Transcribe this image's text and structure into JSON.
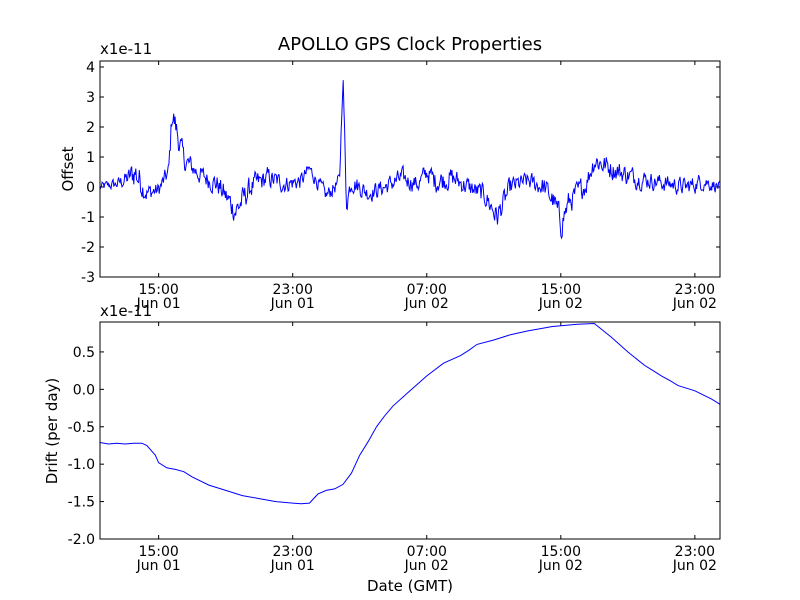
{
  "chart_data": [
    {
      "type": "line",
      "title": "APOLLO GPS Clock Properties",
      "xlabel": "",
      "ylabel": "Offset",
      "scale_label": "x1e-11",
      "xlim": [
        11.5,
        48.5
      ],
      "ylim": [
        -3,
        4.2
      ],
      "yticks": [
        -3,
        -2,
        -1,
        0,
        1,
        2,
        3,
        4
      ],
      "ytick_labels": [
        "-3",
        "-2",
        "-1",
        "0",
        "1",
        "2",
        "3",
        "4"
      ],
      "xticks": [
        15,
        23,
        31,
        39,
        47
      ],
      "xtick_labels": [
        {
          "time": "15:00",
          "date": "Jun 01"
        },
        {
          "time": "23:00",
          "date": "Jun 01"
        },
        {
          "time": "07:00",
          "date": "Jun 02"
        },
        {
          "time": "15:00",
          "date": "Jun 02"
        },
        {
          "time": "23:00",
          "date": "Jun 02"
        }
      ],
      "line_color": "#0000ff",
      "series": [
        {
          "name": "Offset",
          "x": [
            11.5,
            12.5,
            13.2,
            13.6,
            14.3,
            15.0,
            15.6,
            15.8,
            16.5,
            17.5,
            18.5,
            19.6,
            20.5,
            21.5,
            22.5,
            23.5,
            24.0,
            25.0,
            25.8,
            26.0,
            26.2,
            26.5,
            27.5,
            28.5,
            29.5,
            30.5,
            31.0,
            31.5,
            32.5,
            33.5,
            34.5,
            35.2,
            36.0,
            37.0,
            38.0,
            38.6,
            39.0,
            39.5,
            40.5,
            41.0,
            42.5,
            43.5,
            44.5,
            45.5,
            46.5,
            47.5,
            48.5
          ],
          "y": [
            0.0,
            0.1,
            0.3,
            0.5,
            -0.2,
            -0.1,
            0.5,
            2.5,
            0.9,
            0.4,
            0.1,
            -0.8,
            0.0,
            0.3,
            0.1,
            0.2,
            0.6,
            -0.3,
            0.2,
            3.8,
            -0.5,
            0.2,
            -0.2,
            0.0,
            0.3,
            0.1,
            0.5,
            0.2,
            0.3,
            0.0,
            -0.3,
            -1.0,
            0.0,
            0.2,
            0.0,
            -0.5,
            -1.2,
            -0.5,
            0.1,
            0.9,
            0.5,
            0.3,
            0.2,
            0.1,
            0.0,
            0.2,
            0.0
          ],
          "spread": [
            0.25,
            0.3,
            0.5,
            0.9,
            0.5,
            0.4,
            0.5,
            0.8,
            0.6,
            0.5,
            0.55,
            0.7,
            0.6,
            0.55,
            0.45,
            0.45,
            0.35,
            0.4,
            0.4,
            0.4,
            0.6,
            0.5,
            0.45,
            0.45,
            0.5,
            0.45,
            0.5,
            0.6,
            0.55,
            0.5,
            0.55,
            0.65,
            0.5,
            0.45,
            0.55,
            0.6,
            0.8,
            0.6,
            0.55,
            0.6,
            0.55,
            0.5,
            0.45,
            0.45,
            0.45,
            0.45,
            0.3
          ]
        }
      ]
    },
    {
      "type": "line",
      "title": "",
      "xlabel": "Date (GMT)",
      "ylabel": "Drift (per day)",
      "scale_label": "x1e-11",
      "xlim": [
        11.5,
        48.5
      ],
      "ylim": [
        -2.0,
        0.9
      ],
      "yticks": [
        -2.0,
        -1.5,
        -1.0,
        -0.5,
        0.0,
        0.5
      ],
      "ytick_labels": [
        "-2.0",
        "-1.5",
        "-1.0",
        "-0.5",
        "0.0",
        "0.5"
      ],
      "xticks": [
        15,
        23,
        31,
        39,
        47
      ],
      "xtick_labels": [
        {
          "time": "15:00",
          "date": "Jun 01"
        },
        {
          "time": "23:00",
          "date": "Jun 01"
        },
        {
          "time": "07:00",
          "date": "Jun 02"
        },
        {
          "time": "15:00",
          "date": "Jun 02"
        },
        {
          "time": "23:00",
          "date": "Jun 02"
        }
      ],
      "line_color": "#0000ff",
      "series": [
        {
          "name": "Drift",
          "x": [
            11.5,
            12.0,
            12.5,
            13.0,
            13.5,
            14.0,
            14.3,
            14.8,
            15.0,
            15.5,
            16.0,
            16.5,
            17.0,
            18.0,
            19.0,
            20.0,
            21.0,
            22.0,
            23.0,
            23.5,
            24.0,
            24.5,
            25.0,
            25.5,
            26.0,
            26.5,
            27.0,
            27.5,
            28.0,
            28.5,
            29.0,
            30.0,
            31.0,
            32.0,
            33.0,
            33.5,
            34.0,
            35.0,
            36.0,
            37.0,
            37.5,
            38.0,
            38.5,
            39.0,
            40.0,
            41.0,
            42.0,
            43.0,
            44.0,
            44.5,
            45.0,
            45.5,
            46.0,
            47.0,
            48.0,
            48.5
          ],
          "y": [
            -0.71,
            -0.73,
            -0.72,
            -0.73,
            -0.72,
            -0.72,
            -0.75,
            -0.88,
            -0.98,
            -1.05,
            -1.07,
            -1.1,
            -1.17,
            -1.28,
            -1.35,
            -1.42,
            -1.46,
            -1.5,
            -1.52,
            -1.53,
            -1.52,
            -1.4,
            -1.35,
            -1.33,
            -1.27,
            -1.12,
            -0.88,
            -0.7,
            -0.5,
            -0.35,
            -0.22,
            -0.02,
            0.18,
            0.35,
            0.45,
            0.52,
            0.6,
            0.66,
            0.73,
            0.78,
            0.8,
            0.82,
            0.84,
            0.85,
            0.87,
            0.88,
            0.7,
            0.5,
            0.32,
            0.25,
            0.18,
            0.12,
            0.05,
            -0.02,
            -0.13,
            -0.2
          ]
        }
      ]
    }
  ]
}
